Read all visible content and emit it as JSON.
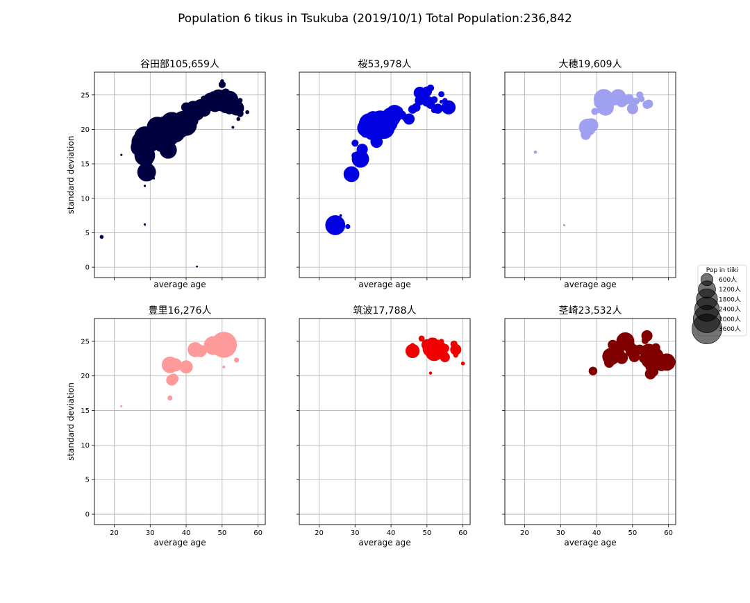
{
  "figure_title": "Population  6 tikus in Tsukuba (2019/10/1) Total Population:236,842",
  "legend": {
    "title": "Pop in tiiki",
    "entries": [
      {
        "label": "600人",
        "value": 600
      },
      {
        "label": "1200人",
        "value": 1200
      },
      {
        "label": "1800人",
        "value": 1800
      },
      {
        "label": "2400人",
        "value": 2400
      },
      {
        "label": "3000人",
        "value": 3000
      },
      {
        "label": "3600人",
        "value": 3600
      }
    ],
    "placement": "right"
  },
  "chart_data": [
    {
      "type": "scatter",
      "title": "谷田部105,659人",
      "xlabel": "average age",
      "ylabel": "standard deviation",
      "xlim": [
        14.5,
        62
      ],
      "ylim": [
        -1.5,
        28.3
      ],
      "xticks": [
        20,
        30,
        40,
        50,
        60
      ],
      "yticks": [
        0,
        5,
        10,
        15,
        20,
        25
      ],
      "show_xticklabels": false,
      "show_yticklabels": true,
      "grid": true,
      "color": "#000040",
      "points": [
        {
          "x": 16.5,
          "y": 4.4,
          "s": 60
        },
        {
          "x": 22,
          "y": 16.3,
          "s": 20
        },
        {
          "x": 28.5,
          "y": 6.2,
          "s": 20
        },
        {
          "x": 28.5,
          "y": 11.8,
          "s": 20
        },
        {
          "x": 31,
          "y": 12.9,
          "s": 20
        },
        {
          "x": 43,
          "y": 0.1,
          "s": 15
        },
        {
          "x": 29,
          "y": 13.8,
          "s": 1400
        },
        {
          "x": 28.5,
          "y": 16.2,
          "s": 1700
        },
        {
          "x": 29,
          "y": 15,
          "s": 400
        },
        {
          "x": 29,
          "y": 15.6,
          "s": 700
        },
        {
          "x": 27,
          "y": 17.4,
          "s": 1200
        },
        {
          "x": 27.5,
          "y": 18.2,
          "s": 1500
        },
        {
          "x": 28.5,
          "y": 18.9,
          "s": 1800
        },
        {
          "x": 30,
          "y": 18.3,
          "s": 700
        },
        {
          "x": 31,
          "y": 18.6,
          "s": 500
        },
        {
          "x": 32,
          "y": 20.3,
          "s": 1800
        },
        {
          "x": 33,
          "y": 19.1,
          "s": 1600
        },
        {
          "x": 34,
          "y": 20.5,
          "s": 1500
        },
        {
          "x": 35,
          "y": 19.8,
          "s": 1900
        },
        {
          "x": 36,
          "y": 20.9,
          "s": 2000
        },
        {
          "x": 35,
          "y": 17,
          "s": 1200
        },
        {
          "x": 33,
          "y": 17.7,
          "s": 700
        },
        {
          "x": 36,
          "y": 18.6,
          "s": 600
        },
        {
          "x": 37,
          "y": 19.5,
          "s": 1500
        },
        {
          "x": 38,
          "y": 20.2,
          "s": 1800
        },
        {
          "x": 39,
          "y": 21.3,
          "s": 1400
        },
        {
          "x": 40,
          "y": 20.6,
          "s": 1800
        },
        {
          "x": 41,
          "y": 21.8,
          "s": 1200
        },
        {
          "x": 42,
          "y": 23,
          "s": 1000
        },
        {
          "x": 43,
          "y": 22.3,
          "s": 800
        },
        {
          "x": 44,
          "y": 23.3,
          "s": 900
        },
        {
          "x": 45,
          "y": 22.8,
          "s": 700
        },
        {
          "x": 46,
          "y": 23.6,
          "s": 700
        },
        {
          "x": 47,
          "y": 24.1,
          "s": 1200
        },
        {
          "x": 48,
          "y": 23.6,
          "s": 900
        },
        {
          "x": 49,
          "y": 24.6,
          "s": 1100
        },
        {
          "x": 50,
          "y": 24,
          "s": 1500
        },
        {
          "x": 51,
          "y": 23.3,
          "s": 700
        },
        {
          "x": 52,
          "y": 24.3,
          "s": 1300
        },
        {
          "x": 53,
          "y": 23.8,
          "s": 800
        },
        {
          "x": 54,
          "y": 23.1,
          "s": 900
        },
        {
          "x": 55,
          "y": 22.3,
          "s": 200
        },
        {
          "x": 54.5,
          "y": 21.5,
          "s": 60
        },
        {
          "x": 57,
          "y": 22.5,
          "s": 60
        },
        {
          "x": 53,
          "y": 20.3,
          "s": 30
        },
        {
          "x": 50,
          "y": 26.5,
          "s": 200
        },
        {
          "x": 51,
          "y": 25.3,
          "s": 300
        },
        {
          "x": 49,
          "y": 25.2,
          "s": 100
        },
        {
          "x": 47.5,
          "y": 25.1,
          "s": 150
        },
        {
          "x": 50,
          "y": 27,
          "s": 60
        },
        {
          "x": 42,
          "y": 21.2,
          "s": 400
        },
        {
          "x": 38,
          "y": 21,
          "s": 1400
        },
        {
          "x": 40,
          "y": 23.2,
          "s": 400
        },
        {
          "x": 52,
          "y": 22.8,
          "s": 300
        },
        {
          "x": 45,
          "y": 24.4,
          "s": 200
        },
        {
          "x": 31,
          "y": 17.2,
          "s": 100
        },
        {
          "x": 55,
          "y": 24.2,
          "s": 100
        }
      ]
    },
    {
      "type": "scatter",
      "title": "桜53,978人",
      "xlabel": "average age",
      "ylabel": "",
      "xlim": [
        14.5,
        62
      ],
      "ylim": [
        -1.5,
        28.3
      ],
      "xticks": [
        20,
        30,
        40,
        50,
        60
      ],
      "yticks": [
        0,
        5,
        10,
        15,
        20,
        25
      ],
      "show_xticklabels": false,
      "show_yticklabels": false,
      "grid": true,
      "color": "#0000e0",
      "points": [
        {
          "x": 24.5,
          "y": 6.1,
          "s": 1600
        },
        {
          "x": 28,
          "y": 5.9,
          "s": 100
        },
        {
          "x": 26,
          "y": 7.5,
          "s": 30
        },
        {
          "x": 29,
          "y": 13.5,
          "s": 1000
        },
        {
          "x": 30,
          "y": 16.2,
          "s": 200
        },
        {
          "x": 31.5,
          "y": 15.7,
          "s": 1200
        },
        {
          "x": 32,
          "y": 17.1,
          "s": 500
        },
        {
          "x": 30,
          "y": 18,
          "s": 200
        },
        {
          "x": 33,
          "y": 20.2,
          "s": 1200
        },
        {
          "x": 34,
          "y": 20.8,
          "s": 1800
        },
        {
          "x": 35,
          "y": 19.8,
          "s": 1500
        },
        {
          "x": 36,
          "y": 20.5,
          "s": 2000
        },
        {
          "x": 37,
          "y": 21.2,
          "s": 1800
        },
        {
          "x": 38,
          "y": 20.2,
          "s": 1900
        },
        {
          "x": 39,
          "y": 21,
          "s": 1700
        },
        {
          "x": 36,
          "y": 18.2,
          "s": 600
        },
        {
          "x": 40,
          "y": 21.8,
          "s": 1500
        },
        {
          "x": 41,
          "y": 22.3,
          "s": 1200
        },
        {
          "x": 42,
          "y": 22.6,
          "s": 400
        },
        {
          "x": 43,
          "y": 22.1,
          "s": 300
        },
        {
          "x": 44,
          "y": 21.7,
          "s": 200
        },
        {
          "x": 45,
          "y": 21.5,
          "s": 500
        },
        {
          "x": 47,
          "y": 23.2,
          "s": 300
        },
        {
          "x": 48,
          "y": 24.2,
          "s": 400
        },
        {
          "x": 49,
          "y": 24.8,
          "s": 600
        },
        {
          "x": 50,
          "y": 24.1,
          "s": 500
        },
        {
          "x": 51,
          "y": 23.6,
          "s": 300
        },
        {
          "x": 52,
          "y": 24.3,
          "s": 200
        },
        {
          "x": 48,
          "y": 25.3,
          "s": 600
        },
        {
          "x": 50,
          "y": 25.5,
          "s": 400
        },
        {
          "x": 51,
          "y": 26,
          "s": 200
        },
        {
          "x": 53,
          "y": 23,
          "s": 400
        },
        {
          "x": 54,
          "y": 25.1,
          "s": 150
        },
        {
          "x": 56,
          "y": 23.2,
          "s": 800
        },
        {
          "x": 55,
          "y": 24.2,
          "s": 100
        },
        {
          "x": 54,
          "y": 24,
          "s": 60
        },
        {
          "x": 52,
          "y": 22.8,
          "s": 150
        },
        {
          "x": 46,
          "y": 22.9,
          "s": 300
        },
        {
          "x": 35,
          "y": 21.5,
          "s": 1000
        },
        {
          "x": 33,
          "y": 19.6,
          "s": 500
        }
      ]
    },
    {
      "type": "scatter",
      "title": "大穂19,609人",
      "xlabel": "average age",
      "ylabel": "",
      "xlim": [
        14.5,
        62
      ],
      "ylim": [
        -1.5,
        28.3
      ],
      "xticks": [
        20,
        30,
        40,
        50,
        60
      ],
      "yticks": [
        0,
        5,
        10,
        15,
        20,
        25
      ],
      "show_xticklabels": false,
      "show_yticklabels": false,
      "grid": true,
      "color": "#a0a0f0",
      "points": [
        {
          "x": 23,
          "y": 16.7,
          "s": 40
        },
        {
          "x": 31,
          "y": 6.1,
          "s": 20
        },
        {
          "x": 37,
          "y": 19.2,
          "s": 400
        },
        {
          "x": 37.5,
          "y": 20.3,
          "s": 1200
        },
        {
          "x": 38.5,
          "y": 20.6,
          "s": 800
        },
        {
          "x": 39.5,
          "y": 22.6,
          "s": 200
        },
        {
          "x": 40.5,
          "y": 22.7,
          "s": 100
        },
        {
          "x": 41,
          "y": 23.9,
          "s": 600
        },
        {
          "x": 42,
          "y": 24.4,
          "s": 1600
        },
        {
          "x": 42.5,
          "y": 23.2,
          "s": 1100
        },
        {
          "x": 44,
          "y": 24.1,
          "s": 200
        },
        {
          "x": 45,
          "y": 24.1,
          "s": 300
        },
        {
          "x": 46,
          "y": 24.7,
          "s": 1000
        },
        {
          "x": 47,
          "y": 24.1,
          "s": 600
        },
        {
          "x": 48,
          "y": 24.2,
          "s": 300
        },
        {
          "x": 49,
          "y": 24.4,
          "s": 400
        },
        {
          "x": 50,
          "y": 23,
          "s": 500
        },
        {
          "x": 51,
          "y": 24.1,
          "s": 200
        },
        {
          "x": 52,
          "y": 25,
          "s": 200
        },
        {
          "x": 52.5,
          "y": 24.4,
          "s": 150
        },
        {
          "x": 54,
          "y": 23.6,
          "s": 300
        },
        {
          "x": 54.5,
          "y": 23.7,
          "s": 300
        }
      ]
    },
    {
      "type": "scatter",
      "title": "豊里16,276人",
      "xlabel": "average age",
      "ylabel": "standard deviation",
      "xlim": [
        14.5,
        62
      ],
      "ylim": [
        -1.5,
        28.3
      ],
      "xticks": [
        20,
        30,
        40,
        50,
        60
      ],
      "yticks": [
        0,
        5,
        10,
        15,
        20,
        25
      ],
      "show_xticklabels": true,
      "show_yticklabels": true,
      "grid": true,
      "color": "#ff9a9a",
      "points": [
        {
          "x": 22,
          "y": 15.6,
          "s": 20
        },
        {
          "x": 35.5,
          "y": 16.8,
          "s": 100
        },
        {
          "x": 35.5,
          "y": 19,
          "s": 60
        },
        {
          "x": 36,
          "y": 19.4,
          "s": 500
        },
        {
          "x": 36.5,
          "y": 19.6,
          "s": 400
        },
        {
          "x": 35.5,
          "y": 21.6,
          "s": 1100
        },
        {
          "x": 37,
          "y": 21.6,
          "s": 700
        },
        {
          "x": 40,
          "y": 21.3,
          "s": 700
        },
        {
          "x": 42.5,
          "y": 23.8,
          "s": 900
        },
        {
          "x": 44,
          "y": 23.6,
          "s": 600
        },
        {
          "x": 47.5,
          "y": 24.4,
          "s": 1400
        },
        {
          "x": 49,
          "y": 24.5,
          "s": 1200
        },
        {
          "x": 50.5,
          "y": 24.5,
          "s": 2700
        },
        {
          "x": 50.5,
          "y": 21.3,
          "s": 30
        },
        {
          "x": 54,
          "y": 22.3,
          "s": 100
        }
      ]
    },
    {
      "type": "scatter",
      "title": "筑波17,788人",
      "xlabel": "average age",
      "ylabel": "",
      "xlim": [
        14.5,
        62
      ],
      "ylim": [
        -1.5,
        28.3
      ],
      "xticks": [
        20,
        30,
        40,
        50,
        60
      ],
      "yticks": [
        0,
        5,
        10,
        15,
        20,
        25
      ],
      "show_xticklabels": true,
      "show_yticklabels": false,
      "grid": true,
      "color": "#f00000",
      "points": [
        {
          "x": 46,
          "y": 23.6,
          "s": 800
        },
        {
          "x": 46,
          "y": 24.4,
          "s": 100
        },
        {
          "x": 48.5,
          "y": 25.4,
          "s": 150
        },
        {
          "x": 50,
          "y": 24.5,
          "s": 500
        },
        {
          "x": 51,
          "y": 23.9,
          "s": 1000
        },
        {
          "x": 51.5,
          "y": 24.6,
          "s": 700
        },
        {
          "x": 52,
          "y": 23.4,
          "s": 1200
        },
        {
          "x": 52.5,
          "y": 24.2,
          "s": 900
        },
        {
          "x": 53,
          "y": 23.7,
          "s": 800
        },
        {
          "x": 53.5,
          "y": 24.1,
          "s": 700
        },
        {
          "x": 54,
          "y": 23.3,
          "s": 600
        },
        {
          "x": 55,
          "y": 22.7,
          "s": 400
        },
        {
          "x": 55,
          "y": 24,
          "s": 300
        },
        {
          "x": 57.5,
          "y": 24.6,
          "s": 200
        },
        {
          "x": 58,
          "y": 23.8,
          "s": 500
        },
        {
          "x": 58,
          "y": 23,
          "s": 100
        },
        {
          "x": 60,
          "y": 21.8,
          "s": 60
        },
        {
          "x": 51,
          "y": 20.4,
          "s": 40
        },
        {
          "x": 54,
          "y": 25,
          "s": 100
        },
        {
          "x": 52,
          "y": 25,
          "s": 200
        }
      ]
    },
    {
      "type": "scatter",
      "title": "茎崎23,532人",
      "xlabel": "average age",
      "ylabel": "",
      "xlim": [
        14.5,
        62
      ],
      "ylim": [
        -1.5,
        28.3
      ],
      "xticks": [
        20,
        30,
        40,
        50,
        60
      ],
      "yticks": [
        0,
        5,
        10,
        15,
        20,
        25
      ],
      "show_xticklabels": true,
      "show_yticklabels": false,
      "grid": true,
      "color": "#800000",
      "points": [
        {
          "x": 39,
          "y": 20.7,
          "s": 300
        },
        {
          "x": 43.5,
          "y": 21.9,
          "s": 400
        },
        {
          "x": 44,
          "y": 22.8,
          "s": 1200
        },
        {
          "x": 44.5,
          "y": 24.5,
          "s": 400
        },
        {
          "x": 45.5,
          "y": 23.5,
          "s": 1000
        },
        {
          "x": 46,
          "y": 24.1,
          "s": 700
        },
        {
          "x": 47,
          "y": 22.6,
          "s": 600
        },
        {
          "x": 48,
          "y": 25,
          "s": 1300
        },
        {
          "x": 49,
          "y": 24.3,
          "s": 600
        },
        {
          "x": 50,
          "y": 23.6,
          "s": 800
        },
        {
          "x": 50.5,
          "y": 22.8,
          "s": 500
        },
        {
          "x": 52,
          "y": 23.8,
          "s": 400
        },
        {
          "x": 53,
          "y": 22.5,
          "s": 300
        },
        {
          "x": 53.5,
          "y": 25.1,
          "s": 200
        },
        {
          "x": 54,
          "y": 25.8,
          "s": 500
        },
        {
          "x": 54.5,
          "y": 23.4,
          "s": 1200
        },
        {
          "x": 55,
          "y": 22.2,
          "s": 800
        },
        {
          "x": 55.5,
          "y": 22.6,
          "s": 2200
        },
        {
          "x": 55,
          "y": 21.3,
          "s": 400
        },
        {
          "x": 55,
          "y": 20.3,
          "s": 500
        },
        {
          "x": 56,
          "y": 20.6,
          "s": 300
        },
        {
          "x": 57,
          "y": 22.1,
          "s": 600
        },
        {
          "x": 58,
          "y": 21.5,
          "s": 500
        },
        {
          "x": 59.5,
          "y": 22,
          "s": 1200
        },
        {
          "x": 56.5,
          "y": 24.1,
          "s": 300
        }
      ]
    }
  ]
}
